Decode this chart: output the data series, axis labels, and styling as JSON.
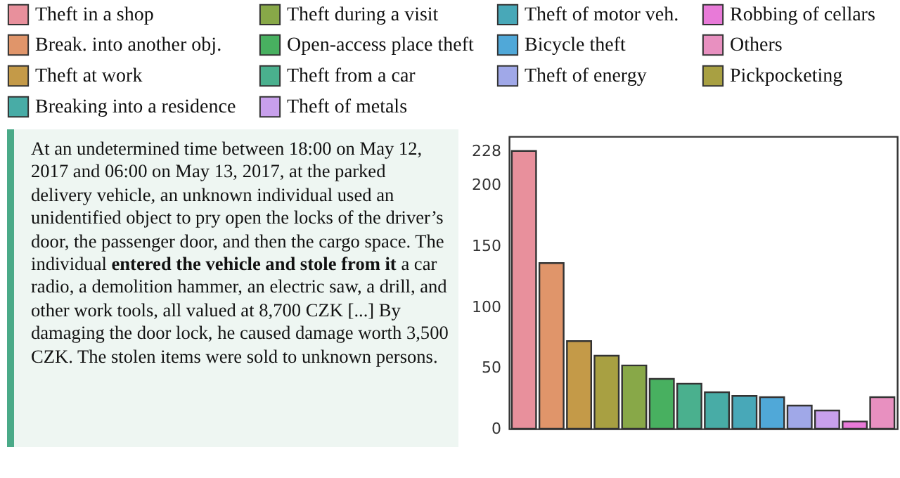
{
  "chart_data": [
    {
      "type": "other",
      "annotations": [
        "At an undetermined time between 18:00 on May 12, 2017 and 06:00 on May 13, 2017, at the parked delivery vehicle, an unknown individual used an unidentified object to pry open the locks of the driver’s door, the passenger door, and then the cargo space. The individual ",
        "entered the vehicle and stole from it",
        " a car radio, a demolition hammer, an electric saw, a drill, and other work tools, all valued at 8,700 CZK [...] By damaging the door lock, he caused damage worth 3,500 CZK. The stolen items were sold to unknown persons."
      ]
    },
    {
      "type": "bar",
      "categories": [
        null,
        null,
        null,
        null,
        null,
        null,
        null,
        null,
        null,
        null,
        null,
        null,
        null,
        null
      ],
      "series": [
        {
          "name": "Theft in a shop",
          "color": "#e8909c",
          "values": [
            228,
            null,
            null,
            null,
            null,
            null,
            null,
            null,
            null,
            null,
            null,
            null,
            null,
            null
          ]
        },
        {
          "name": "Break. into another obj.",
          "color": "#e0956a",
          "values": [
            null,
            136,
            null,
            null,
            null,
            null,
            null,
            null,
            null,
            null,
            null,
            null,
            null,
            null
          ]
        },
        {
          "name": "Theft at work",
          "color": "#c49a48",
          "values": [
            null,
            null,
            72,
            null,
            null,
            null,
            null,
            null,
            null,
            null,
            null,
            null,
            null,
            null
          ]
        },
        {
          "name": "Pickpocketing",
          "color": "#a8a042",
          "values": [
            null,
            null,
            null,
            60,
            null,
            null,
            null,
            null,
            null,
            null,
            null,
            null,
            null,
            null
          ]
        },
        {
          "name": "Theft during a visit",
          "color": "#88a848",
          "values": [
            null,
            null,
            null,
            null,
            52,
            null,
            null,
            null,
            null,
            null,
            null,
            null,
            null,
            null
          ]
        },
        {
          "name": "Open-access place theft",
          "color": "#48b060",
          "values": [
            null,
            null,
            null,
            null,
            null,
            41,
            null,
            null,
            null,
            null,
            null,
            null,
            null,
            null
          ]
        },
        {
          "name": "Theft from a car",
          "color": "#4ab08e",
          "values": [
            null,
            null,
            null,
            null,
            null,
            null,
            37,
            null,
            null,
            null,
            null,
            null,
            null,
            null
          ]
        },
        {
          "name": "Breaking into a residence",
          "color": "#48aca6",
          "values": [
            null,
            null,
            null,
            null,
            null,
            null,
            null,
            30,
            null,
            null,
            null,
            null,
            null,
            null
          ]
        },
        {
          "name": "Theft of motor veh.",
          "color": "#48a8b8",
          "values": [
            null,
            null,
            null,
            null,
            null,
            null,
            null,
            null,
            27,
            null,
            null,
            null,
            null,
            null
          ]
        },
        {
          "name": "Bicycle theft",
          "color": "#50a8d8",
          "values": [
            null,
            null,
            null,
            null,
            null,
            null,
            null,
            null,
            null,
            26,
            null,
            null,
            null,
            null
          ]
        },
        {
          "name": "Theft of energy",
          "color": "#a0a8e8",
          "values": [
            null,
            null,
            null,
            null,
            null,
            null,
            null,
            null,
            null,
            null,
            19,
            null,
            null,
            null
          ]
        },
        {
          "name": "Theft of metals",
          "color": "#c8a0ec",
          "values": [
            null,
            null,
            null,
            null,
            null,
            null,
            null,
            null,
            null,
            null,
            null,
            15,
            null,
            null
          ]
        },
        {
          "name": "Robbing of cellars",
          "color": "#e87ad8",
          "values": [
            null,
            null,
            null,
            null,
            null,
            null,
            null,
            null,
            null,
            null,
            null,
            null,
            6,
            null
          ]
        },
        {
          "name": "Others",
          "color": "#e890c0",
          "values": [
            null,
            null,
            null,
            null,
            null,
            null,
            null,
            null,
            null,
            null,
            null,
            null,
            null,
            26
          ]
        }
      ],
      "stacked": true,
      "ylim": [
        0,
        240
      ],
      "yticks": [
        0,
        50,
        100,
        150,
        200,
        228
      ],
      "legend": "top",
      "grid": false
    }
  ]
}
